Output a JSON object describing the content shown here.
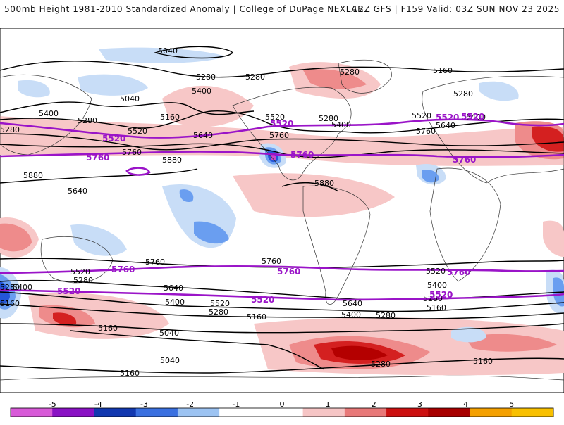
{
  "header": {
    "title_left": "500mb Height 1981-2010 Standardized Anomaly | College of DuPage NEXLAB",
    "title_right": "12Z GFS | F159 Valid: 03Z SUN NOV 23 2025"
  },
  "map": {
    "height_contour_labels": [
      "5040",
      "5040",
      "5280",
      "5280",
      "5280",
      "5160",
      "5400",
      "5280",
      "5280",
      "5400",
      "5280",
      "5160",
      "5520",
      "5280",
      "5400",
      "5520",
      "5640",
      "5760",
      "5640",
      "5760",
      "5880",
      "5880",
      "5880",
      "5760",
      "5520",
      "5640",
      "5400",
      "5280",
      "5520",
      "5400",
      "5160",
      "5040",
      "5040",
      "5160",
      "5760",
      "5760",
      "5640",
      "5520",
      "5400",
      "5280",
      "5160",
      "5640",
      "5400",
      "5280",
      "5160",
      "5520",
      "5280",
      "5160",
      "5280",
      "5280",
      "5400",
      "5160"
    ],
    "reference_lines": [
      {
        "name": "5520",
        "color": "#9a14c8"
      },
      {
        "name": "5760",
        "color": "#9a14c8"
      }
    ],
    "reference_labels": [
      "5520",
      "5520",
      "5520",
      "5520",
      "5760",
      "5760",
      "5760",
      "5760",
      "5760",
      "5760",
      "5520",
      "5520",
      "5520"
    ],
    "anomaly_colors": {
      "positive_1": "#f7c7c7",
      "positive_2": "#ee8b8b",
      "positive_3": "#d42020",
      "positive_4": "#b40000",
      "negative_1": "#c8ddf7",
      "negative_2": "#6a9ef0",
      "negative_3": "#2456d8",
      "negative_4": "#0c2ca8",
      "negative_5": "#cc44cc"
    }
  },
  "colorbar": {
    "ticks": [
      "-5",
      "-4",
      "-3",
      "-2",
      "-1",
      "0",
      "1",
      "2",
      "3",
      "4",
      "5"
    ],
    "colors": [
      "#d85ad8",
      "#8a12c4",
      "#1238b0",
      "#3a70e0",
      "#9cc3f2",
      "#ffffff",
      "#ffffff",
      "#f6c5c5",
      "#e87878",
      "#cc1010",
      "#a80000",
      "#f4a000",
      "#f8c000"
    ]
  }
}
